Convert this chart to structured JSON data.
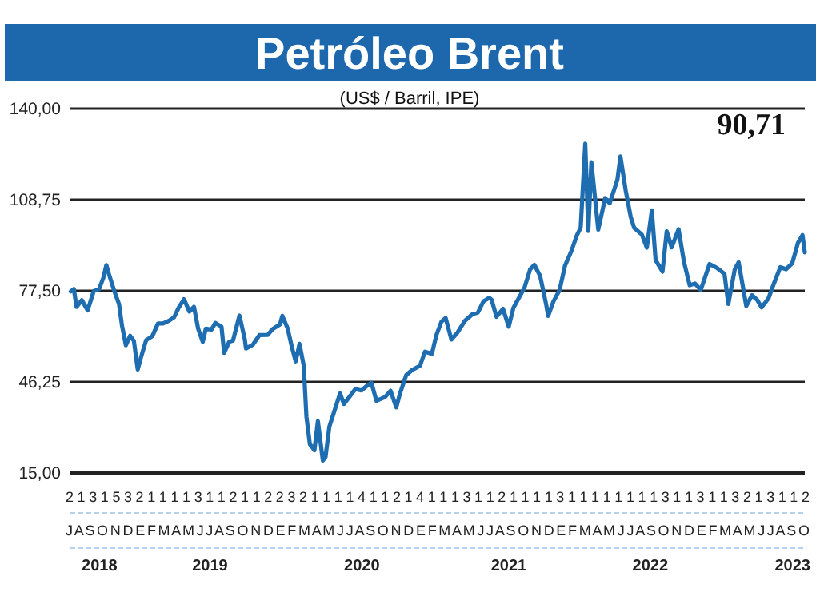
{
  "chart_data": {
    "type": "line",
    "title": "Petróleo Brent",
    "subtitle": "(US$ / Barril, IPE)",
    "annotations": [
      "90,71",
      "2 1 3 1 5 3 2 1 1 1 1 3 1 1 2 1 1 2 2 3 2 1 1 1 1 4 1 1 2 1 4 1 1 1 3 1 1 2 1 1 1 1 3 1 1 1 1 1 1 1 1 3 1 1 3 1 1 3 2 1 3 1 1 2",
      "J A S O N D E F M A M J J A S O N D E F M A M J J A S O N D E F M A M J J A S O N D E F M A M J J A S O N D E F M A M J J A S O"
    ],
    "ylim": [
      15,
      140
    ],
    "yticks": [
      {
        "value": 15,
        "label": "15,00"
      },
      {
        "value": 46.25,
        "label": "46,25"
      },
      {
        "value": 77.5,
        "label": "77,50"
      },
      {
        "value": 108.75,
        "label": "108,75"
      },
      {
        "value": 140,
        "label": "140,00"
      }
    ],
    "grid": "y",
    "xlim": [
      "2018-07-01",
      "2023-10-03"
    ],
    "xticks": [
      {
        "value": "2018-09-15",
        "label": "2018"
      },
      {
        "value": "2019-07-01",
        "label": "2019"
      },
      {
        "value": "2020-08-01",
        "label": "2020"
      },
      {
        "value": "2021-08-20",
        "label": "2021"
      },
      {
        "value": "2022-08-25",
        "label": "2022"
      },
      {
        "value": "2023-09-01",
        "label": "2023"
      }
    ],
    "series": [
      {
        "color": "#1f6db1",
        "x": [
          "2018-07-02",
          "2018-07-10",
          "2018-07-17",
          "2018-07-31",
          "2018-08-15",
          "2018-08-31",
          "2018-09-14",
          "2018-09-25",
          "2018-10-03",
          "2018-10-10",
          "2018-10-25",
          "2018-11-05",
          "2018-11-13",
          "2018-11-23",
          "2018-12-04",
          "2018-12-14",
          "2018-12-24",
          "2019-01-02",
          "2019-01-15",
          "2019-01-31",
          "2019-02-15",
          "2019-02-28",
          "2019-03-15",
          "2019-03-29",
          "2019-04-10",
          "2019-04-24",
          "2019-05-08",
          "2019-05-20",
          "2019-05-31",
          "2019-06-12",
          "2019-06-20",
          "2019-07-05",
          "2019-07-15",
          "2019-07-31",
          "2019-08-07",
          "2019-08-20",
          "2019-08-30",
          "2019-09-16",
          "2019-09-30",
          "2019-10-03",
          "2019-10-21",
          "2019-11-07",
          "2019-11-29",
          "2019-12-11",
          "2019-12-31",
          "2020-01-06",
          "2020-01-20",
          "2020-01-31",
          "2020-02-10",
          "2020-02-20",
          "2020-03-02",
          "2020-03-09",
          "2020-03-18",
          "2020-03-30",
          "2020-04-08",
          "2020-04-21",
          "2020-04-28",
          "2020-05-08",
          "2020-05-20",
          "2020-06-05",
          "2020-06-15",
          "2020-06-30",
          "2020-07-15",
          "2020-07-31",
          "2020-08-15",
          "2020-08-26",
          "2020-09-08",
          "2020-09-30",
          "2020-10-15",
          "2020-10-30",
          "2020-11-09",
          "2020-11-25",
          "2020-12-10",
          "2020-12-31",
          "2021-01-13",
          "2021-01-31",
          "2021-02-12",
          "2021-02-25",
          "2021-03-08",
          "2021-03-23",
          "2021-04-08",
          "2021-04-28",
          "2021-05-17",
          "2021-05-31",
          "2021-06-15",
          "2021-06-30",
          "2021-07-06",
          "2021-07-19",
          "2021-08-05",
          "2021-08-20",
          "2021-09-01",
          "2021-09-30",
          "2021-10-15",
          "2021-10-26",
          "2021-11-10",
          "2021-11-26",
          "2021-12-01",
          "2021-12-15",
          "2021-12-31",
          "2022-01-14",
          "2022-01-31",
          "2022-02-14",
          "2022-02-24",
          "2022-03-08",
          "2022-03-16",
          "2022-03-24",
          "2022-04-11",
          "2022-04-29",
          "2022-05-11",
          "2022-05-31",
          "2022-06-08",
          "2022-06-22",
          "2022-07-05",
          "2022-07-14",
          "2022-08-03",
          "2022-08-16",
          "2022-08-29",
          "2022-09-08",
          "2022-09-26",
          "2022-10-07",
          "2022-10-20",
          "2022-11-07",
          "2022-11-21",
          "2022-12-06",
          "2022-12-20",
          "2023-01-04",
          "2023-01-27",
          "2023-02-15",
          "2023-03-07",
          "2023-03-17",
          "2023-04-03",
          "2023-04-13",
          "2023-05-03",
          "2023-05-18",
          "2023-06-01",
          "2023-06-12",
          "2023-06-30",
          "2023-07-14",
          "2023-07-31",
          "2023-08-15",
          "2023-08-31",
          "2023-09-15",
          "2023-09-27",
          "2023-10-03"
        ],
        "values": [
          77.3,
          78.1,
          72,
          74.3,
          70.8,
          77.4,
          78.1,
          81.9,
          86.3,
          83.1,
          76.9,
          73,
          65.5,
          58.8,
          62.1,
          60.3,
          50.5,
          54.9,
          60.6,
          61.9,
          66.3,
          66.3,
          67.2,
          68.4,
          71.7,
          74.6,
          70.4,
          72,
          64.5,
          60,
          64.5,
          64.2,
          66.5,
          65.2,
          56.2,
          60,
          60.4,
          69,
          60.8,
          57.7,
          59,
          62.3,
          62.4,
          64.3,
          66,
          68.9,
          64.6,
          58.2,
          53.3,
          59.3,
          51.9,
          34.4,
          24.9,
          22.8,
          32.8,
          19.3,
          20.5,
          30.9,
          35.8,
          42.3,
          38.7,
          41.2,
          43.8,
          43.3,
          45,
          45.9,
          39.8,
          41,
          43.2,
          37.5,
          42.4,
          48.6,
          50.3,
          51.8,
          56.6,
          55.9,
          62.4,
          66.9,
          68.2,
          60.8,
          63.2,
          67.3,
          69.5,
          70,
          73.9,
          75.1,
          74.5,
          68.6,
          71.3,
          65.2,
          71.6,
          78.5,
          84.9,
          86.4,
          82.6,
          72.7,
          68.9,
          73.9,
          77.8,
          86.1,
          91.2,
          96.5,
          99.1,
          128,
          98,
          121.6,
          98.5,
          109.3,
          107.5,
          115.6,
          123.6,
          111.7,
          102.8,
          99.1,
          96.8,
          92.3,
          105.1,
          88,
          84.1,
          97.9,
          92.4,
          98.6,
          87.5,
          79.4,
          80,
          77.8,
          86.7,
          85.4,
          83.3,
          73,
          84.9,
          87.3,
          72.3,
          76,
          74.3,
          71.8,
          74.9,
          79.9,
          85.6,
          84.9,
          86.9,
          93.9,
          96.6,
          90.71
        ]
      }
    ]
  }
}
